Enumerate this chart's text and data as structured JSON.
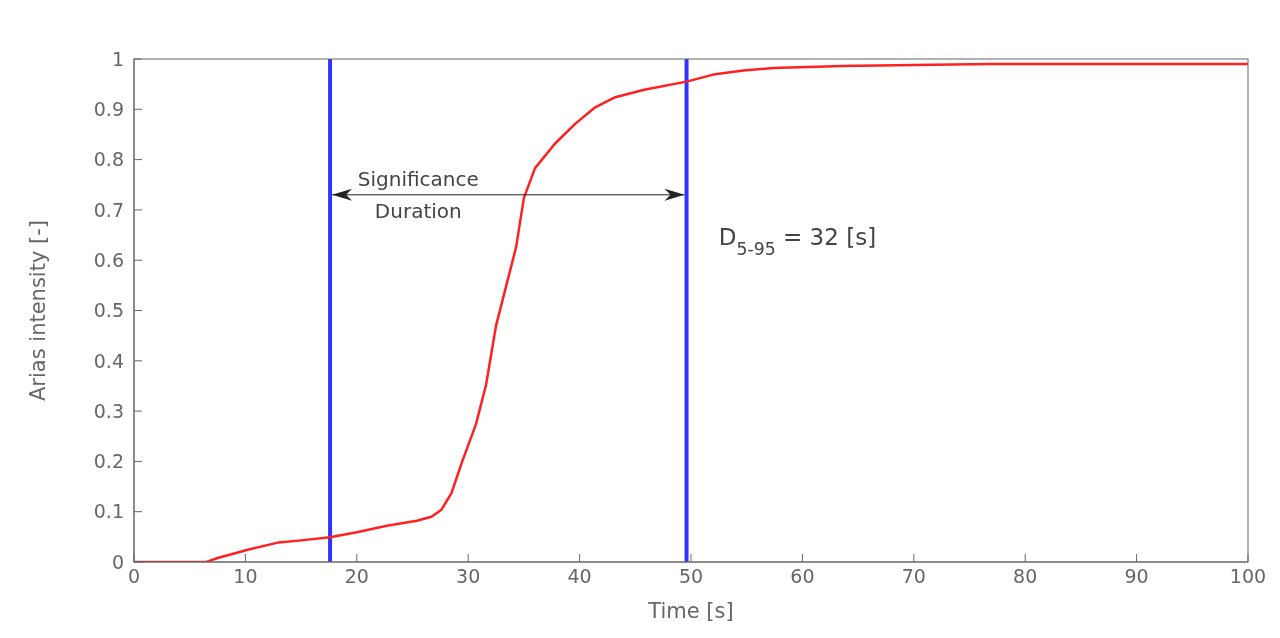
{
  "chart_data": {
    "type": "line",
    "xlabel": "Time [s]",
    "ylabel": "Arias intensity [-]",
    "x": [
      0,
      6.5,
      7.5,
      8.5,
      10.3,
      13,
      15,
      17.6,
      20,
      22.7,
      25.4,
      26.7,
      27.6,
      28.5,
      29.4,
      30.7,
      31.6,
      32.5,
      33.4,
      34.3,
      35,
      36,
      37.8,
      39.6,
      41.4,
      43.2,
      45.8,
      49.6,
      52,
      54.7,
      57.4,
      63.6,
      70,
      77,
      85,
      100
    ],
    "series": [
      {
        "color": "#ff2020",
        "values": [
          0,
          0,
          0.008,
          0.014,
          0.025,
          0.039,
          0.043,
          0.049,
          0.059,
          0.072,
          0.082,
          0.09,
          0.104,
          0.137,
          0.196,
          0.274,
          0.352,
          0.47,
          0.548,
          0.626,
          0.724,
          0.783,
          0.832,
          0.871,
          0.904,
          0.924,
          0.939,
          0.955,
          0.969,
          0.977,
          0.982,
          0.986,
          0.988,
          0.99,
          0.99,
          0.99
        ]
      }
    ],
    "xlim": [
      0,
      100
    ],
    "xticks": [
      0,
      10,
      20,
      30,
      40,
      50,
      60,
      70,
      80,
      90,
      100
    ],
    "ylim": [
      0,
      1
    ],
    "yticks": [
      0,
      0.1,
      0.2,
      0.3,
      0.4,
      0.5,
      0.6,
      0.7,
      0.8,
      0.9,
      1
    ],
    "ref_lines": [
      {
        "axis": "x",
        "value": 17.6,
        "color": "#3333ff"
      },
      {
        "axis": "x",
        "value": 49.6,
        "color": "#3333ff"
      }
    ],
    "annotations": [
      "Significance Duration",
      "D$_{5-95}$ = 32 [s]"
    ],
    "grid": false,
    "legend": false,
    "marker": "none",
    "line_style": "solid"
  }
}
